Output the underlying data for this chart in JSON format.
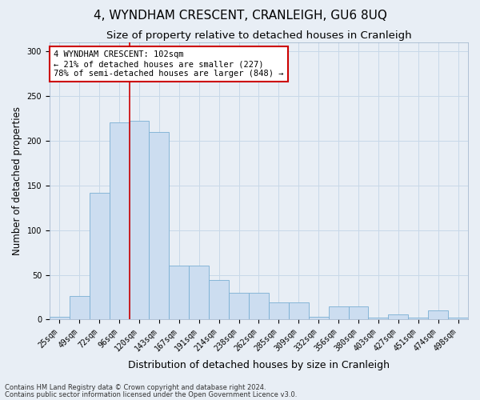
{
  "title": "4, WYNDHAM CRESCENT, CRANLEIGH, GU6 8UQ",
  "subtitle": "Size of property relative to detached houses in Cranleigh",
  "xlabel": "Distribution of detached houses by size in Cranleigh",
  "ylabel": "Number of detached properties",
  "categories": [
    "25sqm",
    "49sqm",
    "72sqm",
    "96sqm",
    "120sqm",
    "143sqm",
    "167sqm",
    "191sqm",
    "214sqm",
    "238sqm",
    "262sqm",
    "285sqm",
    "309sqm",
    "332sqm",
    "356sqm",
    "380sqm",
    "403sqm",
    "427sqm",
    "451sqm",
    "474sqm",
    "498sqm"
  ],
  "values": [
    3,
    26,
    142,
    221,
    222,
    210,
    60,
    60,
    44,
    30,
    30,
    19,
    19,
    3,
    15,
    15,
    2,
    6,
    2,
    10,
    2
  ],
  "bar_color": "#ccddf0",
  "bar_edge_color": "#7aafd4",
  "grid_color": "#c8d8e8",
  "bg_color": "#e8eef5",
  "vline_x_idx": 4,
  "vline_color": "#cc0000",
  "annotation_text": "4 WYNDHAM CRESCENT: 102sqm\n← 21% of detached houses are smaller (227)\n78% of semi-detached houses are larger (848) →",
  "annotation_box_color": "#ffffff",
  "annotation_border_color": "#cc0000",
  "footer1": "Contains HM Land Registry data © Crown copyright and database right 2024.",
  "footer2": "Contains public sector information licensed under the Open Government Licence v3.0.",
  "title_fontsize": 11,
  "subtitle_fontsize": 9.5,
  "ylabel_fontsize": 8.5,
  "xlabel_fontsize": 9,
  "tick_fontsize": 7,
  "annotation_fontsize": 7.5,
  "footer_fontsize": 6
}
